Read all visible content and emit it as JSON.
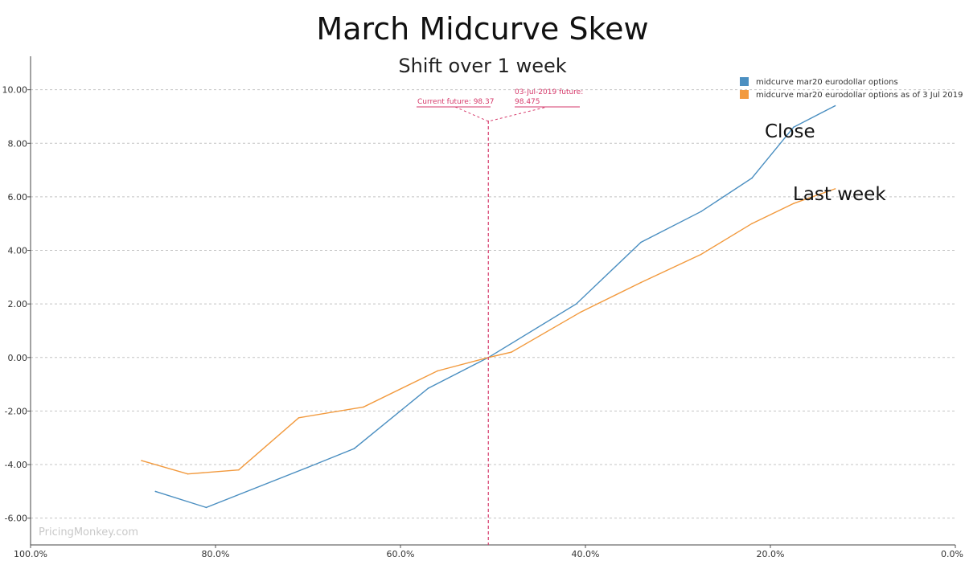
{
  "chart_data": {
    "type": "line",
    "title": "March Midcurve Skew",
    "subtitle": "Shift over 1 week",
    "xlabel": "",
    "ylabel": "",
    "xlim": [
      100,
      0
    ],
    "ylim": [
      -7,
      10.8
    ],
    "x_ticks": [
      "100.0%",
      "80.0%",
      "60.0%",
      "40.0%",
      "20.0%",
      "0.0%"
    ],
    "y_ticks": [
      "10.00",
      "8.00",
      "6.00",
      "4.00",
      "2.00",
      "0.00",
      "-2.00",
      "-4.00",
      "-6.00"
    ],
    "grid": true,
    "legend_position": "top-right",
    "series": [
      {
        "name": "midcurve mar20 eurodollar options",
        "color": "#4b8fc1",
        "points": [
          [
            86.5,
            -5.0
          ],
          [
            81,
            -5.6
          ],
          [
            70,
            -4.1
          ],
          [
            65,
            -3.4
          ],
          [
            57,
            -1.15
          ],
          [
            50.5,
            0
          ],
          [
            41,
            2.0
          ],
          [
            34,
            4.3
          ],
          [
            27.5,
            5.45
          ],
          [
            22,
            6.7
          ],
          [
            17.5,
            8.6
          ],
          [
            13,
            9.4
          ]
        ]
      },
      {
        "name": "midcurve mar20 eurodollar options as of 3 Jul 2019",
        "color": "#f29a3e",
        "points": [
          [
            88,
            -3.85
          ],
          [
            83,
            -4.35
          ],
          [
            77.5,
            -4.2
          ],
          [
            71,
            -2.25
          ],
          [
            64,
            -1.85
          ],
          [
            56,
            -0.5
          ],
          [
            50.5,
            0
          ],
          [
            48,
            0.2
          ],
          [
            40.5,
            1.7
          ],
          [
            34,
            2.8
          ],
          [
            27.5,
            3.85
          ],
          [
            22,
            5.0
          ],
          [
            17.5,
            5.75
          ],
          [
            13,
            6.3
          ]
        ]
      }
    ],
    "annotations": {
      "current_future": "Current future: 98.37",
      "past_future_line1": "03-Jul-2019 future:",
      "past_future_line2": "98.475",
      "close_label": "Close",
      "last_week_label": "Last week"
    },
    "reference_line_x": 50.5,
    "watermark": "PricingMonkey.com"
  }
}
